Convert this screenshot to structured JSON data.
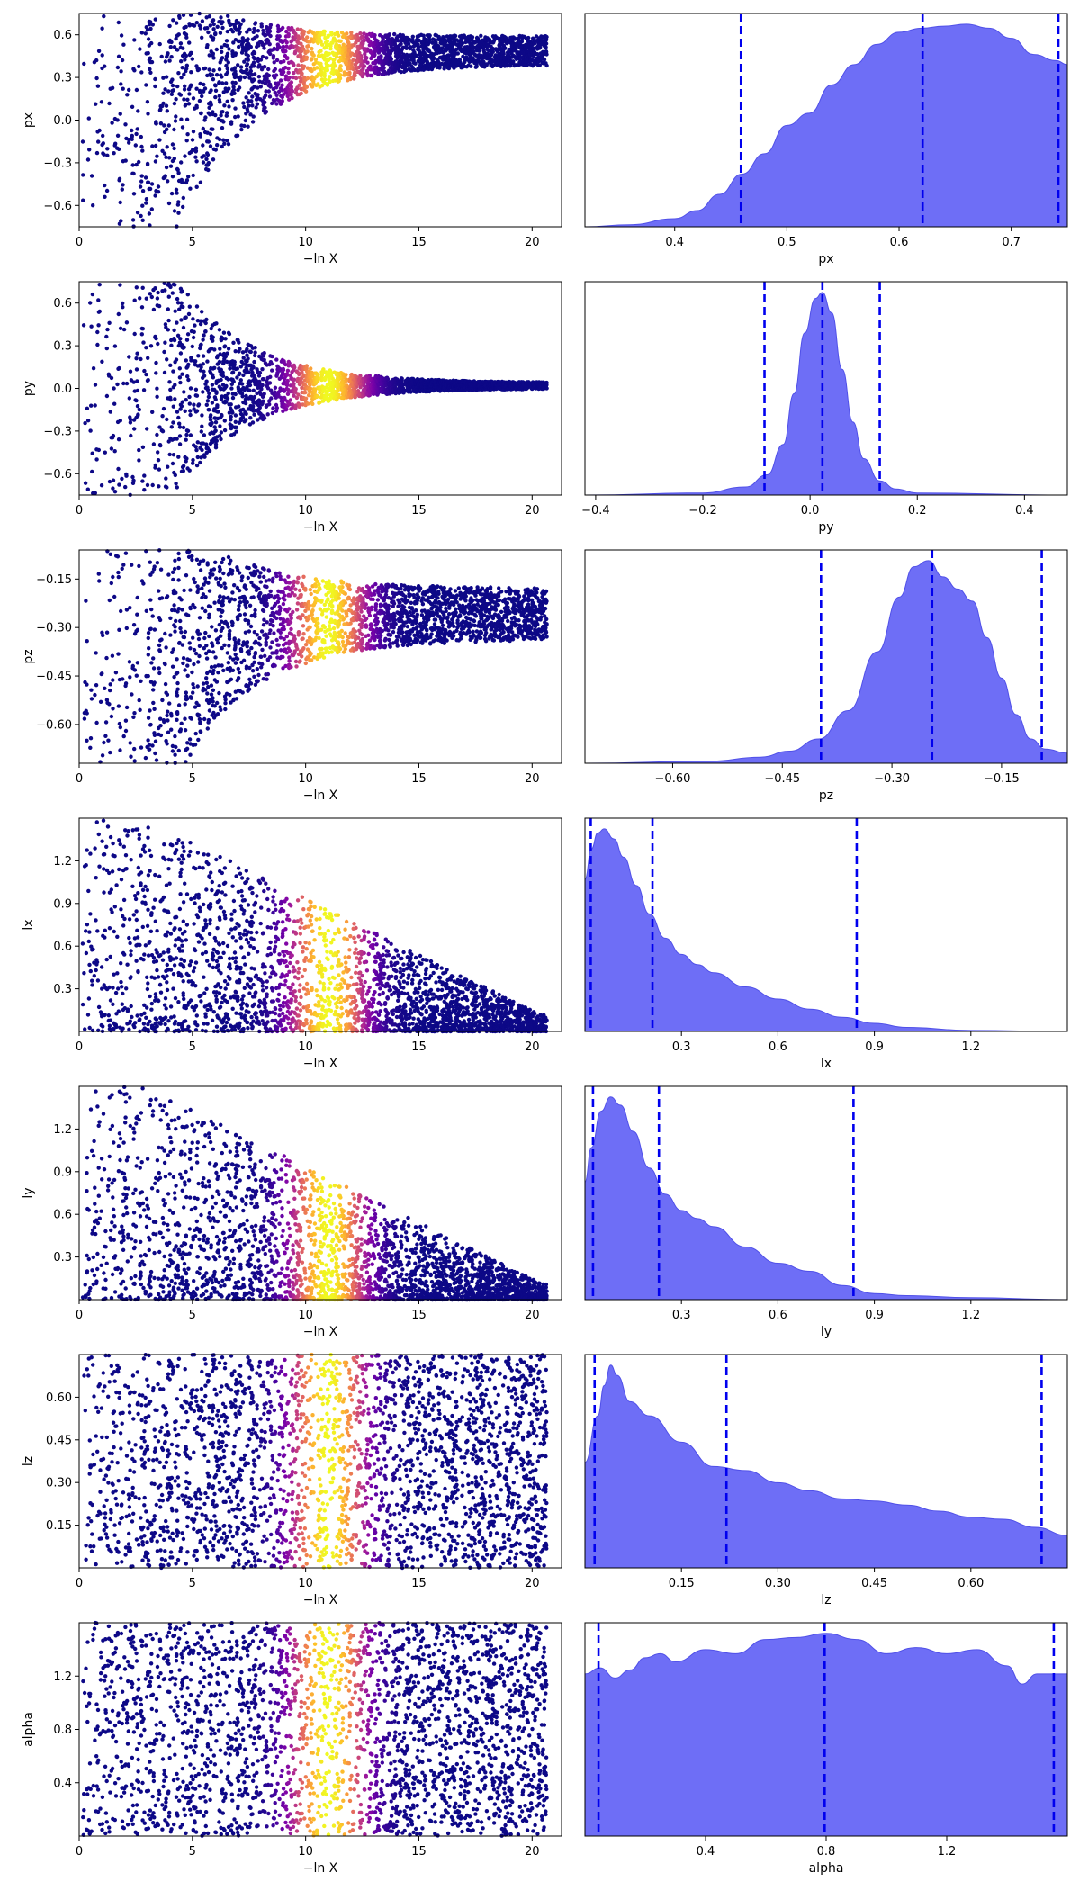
{
  "chart_data": [
    {
      "type": "scatter",
      "panel": "trace",
      "xlabel": "−ln X",
      "ylabel": "px",
      "xlim": [
        0,
        21.3
      ],
      "ylim": [
        -0.75,
        0.75
      ],
      "xticks": [
        0,
        5,
        10,
        15,
        20
      ],
      "yticks": [
        -0.6,
        -0.3,
        0.0,
        0.3,
        0.6
      ],
      "ytick_labels": [
        "−0.6",
        "−0.3",
        "0.0",
        "0.3",
        "0.6"
      ],
      "colormap": "plasma",
      "peak_x": 11,
      "pattern": "funnel-up",
      "center": 0.55,
      "final_spread": 0.1
    },
    {
      "type": "area",
      "panel": "marginal-kde",
      "xlabel": "px",
      "xlim": [
        0.32,
        0.75
      ],
      "xticks": [
        0.4,
        0.5,
        0.6,
        0.7
      ],
      "xtick_labels": [
        "0.4",
        "0.5",
        "0.6",
        "0.7"
      ],
      "quantile_lines": [
        0.459,
        0.621,
        0.742
      ],
      "x": [
        0.32,
        0.36,
        0.4,
        0.42,
        0.44,
        0.46,
        0.48,
        0.5,
        0.52,
        0.54,
        0.56,
        0.58,
        0.6,
        0.62,
        0.64,
        0.66,
        0.68,
        0.7,
        0.72,
        0.74,
        0.75
      ],
      "y": [
        0.0,
        0.01,
        0.04,
        0.08,
        0.16,
        0.26,
        0.36,
        0.5,
        0.56,
        0.7,
        0.8,
        0.9,
        0.96,
        0.98,
        0.99,
        1.0,
        0.98,
        0.93,
        0.85,
        0.82,
        0.8
      ]
    },
    {
      "type": "scatter",
      "panel": "trace",
      "xlabel": "−ln X",
      "ylabel": "py",
      "xlim": [
        0,
        21.3
      ],
      "ylim": [
        -0.75,
        0.75
      ],
      "xticks": [
        0,
        5,
        10,
        15,
        20
      ],
      "yticks": [
        -0.6,
        -0.3,
        0.0,
        0.3,
        0.6
      ],
      "ytick_labels": [
        "−0.6",
        "−0.3",
        "0.0",
        "0.3",
        "0.6"
      ],
      "colormap": "plasma",
      "peak_x": 11,
      "pattern": "funnel-center",
      "center": 0.02,
      "final_spread": 0.02
    },
    {
      "type": "area",
      "panel": "marginal-kde",
      "xlabel": "py",
      "xlim": [
        -0.42,
        0.48
      ],
      "xticks": [
        -0.4,
        -0.2,
        0.0,
        0.2,
        0.4
      ],
      "xtick_labels": [
        "−0.4",
        "−0.2",
        "0.0",
        "0.2",
        "0.4"
      ],
      "quantile_lines": [
        -0.085,
        0.023,
        0.13
      ],
      "x": [
        -0.42,
        -0.2,
        -0.12,
        -0.08,
        -0.05,
        -0.03,
        -0.01,
        0.01,
        0.023,
        0.04,
        0.06,
        0.08,
        0.1,
        0.13,
        0.16,
        0.2,
        0.48
      ],
      "y": [
        0.0,
        0.01,
        0.04,
        0.1,
        0.25,
        0.5,
        0.8,
        0.97,
        1.0,
        0.9,
        0.62,
        0.36,
        0.18,
        0.07,
        0.03,
        0.01,
        0.0
      ]
    },
    {
      "type": "scatter",
      "panel": "trace",
      "xlabel": "−ln X",
      "ylabel": "pz",
      "xlim": [
        0,
        21.3
      ],
      "ylim": [
        -0.72,
        -0.06
      ],
      "xticks": [
        0,
        5,
        10,
        15,
        20
      ],
      "yticks": [
        -0.6,
        -0.45,
        -0.3,
        -0.15
      ],
      "ytick_labels": [
        "−0.60",
        "−0.45",
        "−0.30",
        "−0.15"
      ],
      "colormap": "plasma",
      "peak_x": 11,
      "pattern": "funnel-upper",
      "center": -0.23,
      "final_spread": 0.08
    },
    {
      "type": "area",
      "panel": "marginal-kde",
      "xlabel": "pz",
      "xlim": [
        -0.72,
        -0.06
      ],
      "xticks": [
        -0.6,
        -0.45,
        -0.3,
        -0.15
      ],
      "xtick_labels": [
        "−0.60",
        "−0.45",
        "−0.30",
        "−0.15"
      ],
      "quantile_lines": [
        -0.397,
        -0.245,
        -0.095
      ],
      "x": [
        -0.72,
        -0.55,
        -0.48,
        -0.44,
        -0.4,
        -0.36,
        -0.32,
        -0.29,
        -0.27,
        -0.25,
        -0.23,
        -0.21,
        -0.19,
        -0.17,
        -0.15,
        -0.13,
        -0.11,
        -0.09,
        -0.06
      ],
      "y": [
        0.0,
        0.01,
        0.03,
        0.06,
        0.12,
        0.26,
        0.55,
        0.82,
        0.97,
        1.0,
        0.92,
        0.86,
        0.8,
        0.62,
        0.42,
        0.24,
        0.12,
        0.07,
        0.05
      ]
    },
    {
      "type": "scatter",
      "panel": "trace",
      "xlabel": "−ln X",
      "ylabel": "lx",
      "xlim": [
        0,
        21.3
      ],
      "ylim": [
        0,
        1.5
      ],
      "xticks": [
        0,
        5,
        10,
        15,
        20
      ],
      "yticks": [
        0.3,
        0.6,
        0.9,
        1.2
      ],
      "ytick_labels": [
        "0.3",
        "0.6",
        "0.9",
        "1.2"
      ],
      "colormap": "plasma",
      "peak_x": 11,
      "pattern": "decay-low",
      "center": 0.1,
      "final_spread": 0.1
    },
    {
      "type": "area",
      "panel": "marginal-kde",
      "xlabel": "lx",
      "xlim": [
        0,
        1.5
      ],
      "xticks": [
        0.3,
        0.6,
        0.9,
        1.2
      ],
      "xtick_labels": [
        "0.3",
        "0.6",
        "0.9",
        "1.2"
      ],
      "quantile_lines": [
        0.018,
        0.21,
        0.845
      ],
      "x": [
        0.0,
        0.02,
        0.04,
        0.06,
        0.09,
        0.12,
        0.16,
        0.2,
        0.25,
        0.3,
        0.35,
        0.4,
        0.5,
        0.6,
        0.7,
        0.8,
        0.9,
        1.0,
        1.2,
        1.5
      ],
      "y": [
        0.75,
        0.9,
        0.98,
        1.0,
        0.95,
        0.86,
        0.72,
        0.58,
        0.46,
        0.38,
        0.33,
        0.29,
        0.22,
        0.16,
        0.11,
        0.07,
        0.04,
        0.02,
        0.005,
        0.0
      ]
    },
    {
      "type": "scatter",
      "panel": "trace",
      "xlabel": "−ln X",
      "ylabel": "ly",
      "xlim": [
        0,
        21.3
      ],
      "ylim": [
        0,
        1.5
      ],
      "xticks": [
        0,
        5,
        10,
        15,
        20
      ],
      "yticks": [
        0.3,
        0.6,
        0.9,
        1.2
      ],
      "ytick_labels": [
        "0.3",
        "0.6",
        "0.9",
        "1.2"
      ],
      "colormap": "plasma",
      "peak_x": 11,
      "pattern": "decay-low",
      "center": 0.1,
      "final_spread": 0.1
    },
    {
      "type": "area",
      "panel": "marginal-kde",
      "xlabel": "ly",
      "xlim": [
        0,
        1.5
      ],
      "xticks": [
        0.3,
        0.6,
        0.9,
        1.2
      ],
      "xtick_labels": [
        "0.3",
        "0.6",
        "0.9",
        "1.2"
      ],
      "quantile_lines": [
        0.025,
        0.23,
        0.835
      ],
      "x": [
        0.0,
        0.02,
        0.05,
        0.08,
        0.11,
        0.15,
        0.2,
        0.25,
        0.3,
        0.35,
        0.4,
        0.5,
        0.6,
        0.7,
        0.8,
        0.9,
        1.0,
        1.2,
        1.5
      ],
      "y": [
        0.58,
        0.75,
        0.93,
        1.0,
        0.96,
        0.83,
        0.65,
        0.52,
        0.44,
        0.4,
        0.36,
        0.26,
        0.18,
        0.14,
        0.07,
        0.03,
        0.02,
        0.01,
        0.0
      ]
    },
    {
      "type": "scatter",
      "panel": "trace",
      "xlabel": "−ln X",
      "ylabel": "lz",
      "xlim": [
        0,
        21.3
      ],
      "ylim": [
        0,
        0.75
      ],
      "xticks": [
        0,
        5,
        10,
        15,
        20
      ],
      "yticks": [
        0.15,
        0.3,
        0.45,
        0.6
      ],
      "ytick_labels": [
        "0.15",
        "0.30",
        "0.45",
        "0.60"
      ],
      "colormap": "plasma",
      "peak_x": 11,
      "pattern": "uniform",
      "center": 0.375,
      "final_spread": 0.375
    },
    {
      "type": "area",
      "panel": "marginal-kde",
      "xlabel": "lz",
      "xlim": [
        0,
        0.75
      ],
      "xticks": [
        0.15,
        0.3,
        0.45,
        0.6
      ],
      "xtick_labels": [
        "0.15",
        "0.30",
        "0.45",
        "0.60"
      ],
      "quantile_lines": [
        0.015,
        0.22,
        0.71
      ],
      "x": [
        0.0,
        0.02,
        0.03,
        0.04,
        0.05,
        0.07,
        0.1,
        0.15,
        0.2,
        0.25,
        0.3,
        0.35,
        0.4,
        0.45,
        0.5,
        0.55,
        0.6,
        0.65,
        0.7,
        0.75
      ],
      "y": [
        0.52,
        0.75,
        0.9,
        1.0,
        0.95,
        0.82,
        0.75,
        0.62,
        0.5,
        0.48,
        0.42,
        0.38,
        0.34,
        0.33,
        0.31,
        0.28,
        0.25,
        0.24,
        0.2,
        0.16
      ]
    },
    {
      "type": "scatter",
      "panel": "trace",
      "xlabel": "−ln X",
      "ylabel": "alpha",
      "xlim": [
        0,
        21.3
      ],
      "ylim": [
        0,
        1.6
      ],
      "xticks": [
        0,
        5,
        10,
        15,
        20
      ],
      "yticks": [
        0.4,
        0.8,
        1.2
      ],
      "ytick_labels": [
        "0.4",
        "0.8",
        "1.2"
      ],
      "colormap": "plasma",
      "peak_x": 11,
      "pattern": "uniform",
      "center": 0.8,
      "final_spread": 0.8
    },
    {
      "type": "area",
      "panel": "marginal-kde",
      "xlabel": "alpha",
      "xlim": [
        0,
        1.6
      ],
      "xticks": [
        0.4,
        0.8,
        1.2
      ],
      "xtick_labels": [
        "0.4",
        "0.8",
        "1.2"
      ],
      "quantile_lines": [
        0.045,
        0.795,
        1.555
      ],
      "x": [
        0.0,
        0.05,
        0.1,
        0.15,
        0.2,
        0.25,
        0.3,
        0.4,
        0.5,
        0.6,
        0.7,
        0.8,
        0.9,
        1.0,
        1.1,
        1.2,
        1.3,
        1.4,
        1.45,
        1.5,
        1.6
      ],
      "y": [
        0.8,
        0.83,
        0.78,
        0.82,
        0.88,
        0.9,
        0.86,
        0.92,
        0.9,
        0.97,
        0.98,
        1.0,
        0.97,
        0.9,
        0.93,
        0.9,
        0.92,
        0.84,
        0.75,
        0.8,
        0.8
      ]
    }
  ]
}
